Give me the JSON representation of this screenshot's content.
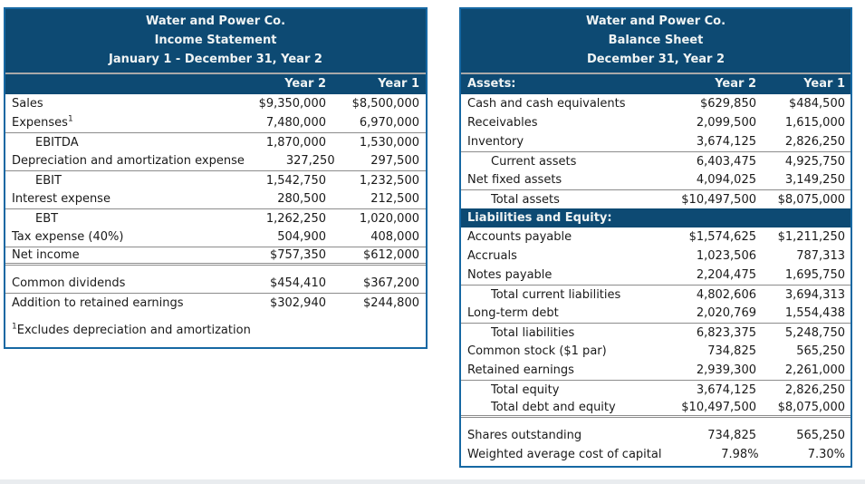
{
  "theme": {
    "header_bg": "#0d4a73",
    "border": "#1668a3",
    "head_text": "#f0f4f4",
    "body_text": "#1a1a1a",
    "rule": "#8c8c8c"
  },
  "income_statement": {
    "title_lines": [
      "Water and Power Co.",
      "Income Statement",
      "January 1 - December 31, Year 2"
    ],
    "columns": {
      "label": "",
      "year2": "Year 2",
      "year1": "Year 1"
    },
    "rows": [
      {
        "label": "Sales",
        "y2": "$9,350,000",
        "y1": "$8,500,000"
      },
      {
        "label": "Expenses",
        "sup": "1",
        "y2": "7,480,000",
        "y1": "6,970,000"
      },
      {
        "label": "EBITDA",
        "indent": true,
        "rule_above": true,
        "y2": "1,870,000",
        "y1": "1,530,000"
      },
      {
        "label": "Depreciation and amortization expense",
        "y2": "327,250",
        "y1": "297,500"
      },
      {
        "label": "EBIT",
        "indent": true,
        "rule_above": true,
        "y2": "1,542,750",
        "y1": "1,232,500"
      },
      {
        "label": "Interest expense",
        "y2": "280,500",
        "y1": "212,500"
      },
      {
        "label": "EBT",
        "indent": true,
        "rule_above": true,
        "y2": "1,262,250",
        "y1": "1,020,000"
      },
      {
        "label": "Tax expense (40%)",
        "y2": "504,900",
        "y1": "408,000"
      },
      {
        "label": "Net income",
        "rule_above": true,
        "double_below": true,
        "y2": "$757,350",
        "y1": "$612,000"
      },
      {
        "label": "Common dividends",
        "gap_above": true,
        "y2": "$454,410",
        "y1": "$367,200"
      },
      {
        "label": "Addition to retained earnings",
        "rule_above": true,
        "y2": "$302,940",
        "y1": "$244,800"
      }
    ],
    "footnote": {
      "sup": "1",
      "text": "Excludes depreciation and amortization"
    }
  },
  "balance_sheet": {
    "title_lines": [
      "Water and Power Co.",
      "Balance Sheet",
      "December 31, Year 2"
    ],
    "columns": {
      "label": "Assets:",
      "year2": "Year 2",
      "year1": "Year 1"
    },
    "rows": [
      {
        "label": "Cash and cash equivalents",
        "y2": "$629,850",
        "y1": "$484,500"
      },
      {
        "label": "Receivables",
        "y2": "2,099,500",
        "y1": "1,615,000"
      },
      {
        "label": "Inventory",
        "y2": "3,674,125",
        "y1": "2,826,250"
      },
      {
        "label": "Current assets",
        "indent": true,
        "rule_above": true,
        "y2": "6,403,475",
        "y1": "4,925,750"
      },
      {
        "label": "Net fixed assets",
        "y2": "4,094,025",
        "y1": "3,149,250"
      },
      {
        "label": "Total assets",
        "indent": true,
        "rule_above": true,
        "y2": "$10,497,500",
        "y1": "$8,075,000"
      },
      {
        "section": "Liabilities and Equity:"
      },
      {
        "label": "Accounts payable",
        "y2": "$1,574,625",
        "y1": "$1,211,250"
      },
      {
        "label": "Accruals",
        "y2": "1,023,506",
        "y1": "787,313"
      },
      {
        "label": "Notes payable",
        "y2": "2,204,475",
        "y1": "1,695,750"
      },
      {
        "label": "Total current liabilities",
        "indent": true,
        "rule_above": true,
        "y2": "4,802,606",
        "y1": "3,694,313"
      },
      {
        "label": "Long-term debt",
        "y2": "2,020,769",
        "y1": "1,554,438"
      },
      {
        "label": "Total liabilities",
        "indent": true,
        "rule_above": true,
        "y2": "6,823,375",
        "y1": "5,248,750"
      },
      {
        "label": "Common stock ($1 par)",
        "y2": "734,825",
        "y1": "565,250"
      },
      {
        "label": "Retained earnings",
        "y2": "2,939,300",
        "y1": "2,261,000"
      },
      {
        "label": "Total equity",
        "indent": true,
        "rule_above": true,
        "y2": "3,674,125",
        "y1": "2,826,250"
      },
      {
        "label": "Total debt and equity",
        "indent": true,
        "double_below": true,
        "y2": "$10,497,500",
        "y1": "$8,075,000"
      },
      {
        "label": "Shares outstanding",
        "gap_above": true,
        "y2": "734,825",
        "y1": "565,250"
      },
      {
        "label": "Weighted average cost of capital",
        "y2": "7.98%",
        "y1": "7.30%"
      }
    ]
  }
}
